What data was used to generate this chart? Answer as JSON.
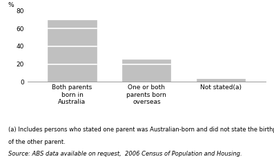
{
  "categories": [
    "Both parents\nborn in\nAustralia",
    "One or both\nparents born\noverseas",
    "Not stated(a)"
  ],
  "values": [
    70.0,
    25.0,
    3.0
  ],
  "bar_color": "#c0c0c0",
  "bar_edge_color": "#c0c0c0",
  "bar_width": 0.65,
  "ylim": [
    0,
    80
  ],
  "yticks": [
    0,
    20,
    40,
    60,
    80
  ],
  "ylabel": "%",
  "bg_color": "#ffffff",
  "hline_color": "#ffffff",
  "axis_color": "#888888",
  "tick_fontsize": 6.5,
  "label_fontsize": 6.5,
  "footnote_fontsize": 6.0,
  "footnote1": "(a) Includes persons who stated one parent was Australian-born and did not state the birthplace",
  "footnote2": "of the other parent.",
  "source": "Source: ABS data available on request,  2006 Census of Population and Housing."
}
